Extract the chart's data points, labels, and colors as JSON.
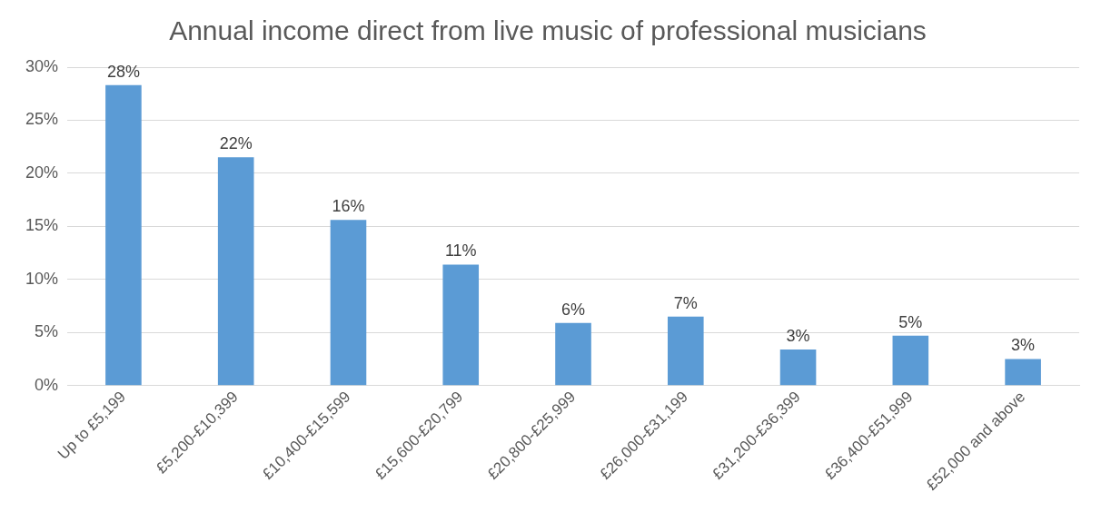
{
  "chart_data": {
    "type": "bar",
    "title": "Annual income direct from live music of professional musicians",
    "categories": [
      "Up to £5,199",
      "£5,200-£10,399",
      "£10,400-£15,599",
      "£15,600-£20,799",
      "£20,800-£25,999",
      "£26,000-£31,199",
      "£31,200-£36,399",
      "£36,400-£51,999",
      "£52,000 and above"
    ],
    "values": [
      28.3,
      21.5,
      15.6,
      11.4,
      5.9,
      6.5,
      3.4,
      4.7,
      2.5
    ],
    "value_labels": [
      "28%",
      "22%",
      "16%",
      "11%",
      "6%",
      "7%",
      "3%",
      "5%",
      "3%"
    ],
    "color": "#5b9bd5",
    "ylim": [
      0,
      30
    ],
    "yticks": [
      {
        "value": 0,
        "label": "0%"
      },
      {
        "value": 5,
        "label": "5%"
      },
      {
        "value": 10,
        "label": "10%"
      },
      {
        "value": 15,
        "label": "15%"
      },
      {
        "value": 20,
        "label": "20%"
      },
      {
        "value": 25,
        "label": "25%"
      },
      {
        "value": 30,
        "label": "30%"
      }
    ],
    "grid": "y",
    "legend": false
  }
}
